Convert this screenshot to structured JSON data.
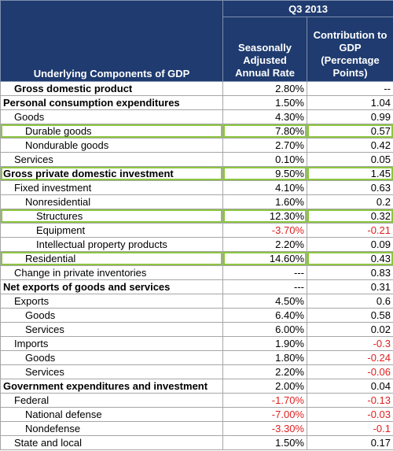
{
  "header": {
    "period": "Q3 2013",
    "component_heading": "Underlying Components of GDP",
    "rate_heading": "Seasonally Adjusted Annual Rate",
    "contribution_heading": "Contribution to GDP (Percentage Points)"
  },
  "table": {
    "rows": [
      {
        "label": "Gross domestic product",
        "rate": "2.80%",
        "contribution": "--",
        "level": 1,
        "bold": true,
        "highlight": false
      },
      {
        "label": "Personal consumption expenditures",
        "rate": "1.50%",
        "contribution": "1.04",
        "level": 0,
        "bold": true,
        "highlight": false
      },
      {
        "label": "Goods",
        "rate": "4.30%",
        "contribution": "0.99",
        "level": 1,
        "bold": false,
        "highlight": false
      },
      {
        "label": "Durable goods",
        "rate": "7.80%",
        "contribution": "0.57",
        "level": 2,
        "bold": false,
        "highlight": true
      },
      {
        "label": "Nondurable goods",
        "rate": "2.70%",
        "contribution": "0.42",
        "level": 2,
        "bold": false,
        "highlight": false
      },
      {
        "label": "Services",
        "rate": "0.10%",
        "contribution": "0.05",
        "level": 1,
        "bold": false,
        "highlight": false
      },
      {
        "label": "Gross private domestic investment",
        "rate": "9.50%",
        "contribution": "1.45",
        "level": 0,
        "bold": true,
        "highlight": true
      },
      {
        "label": "Fixed investment",
        "rate": "4.10%",
        "contribution": "0.63",
        "level": 1,
        "bold": false,
        "highlight": false
      },
      {
        "label": "Nonresidential",
        "rate": "1.60%",
        "contribution": "0.2",
        "level": 2,
        "bold": false,
        "highlight": false
      },
      {
        "label": "Structures",
        "rate": "12.30%",
        "contribution": "0.32",
        "level": 3,
        "bold": false,
        "highlight": true
      },
      {
        "label": "Equipment",
        "rate": "-3.70%",
        "contribution": "-0.21",
        "level": 3,
        "bold": false,
        "highlight": false
      },
      {
        "label": "Intellectual property products",
        "rate": "2.20%",
        "contribution": "0.09",
        "level": 3,
        "bold": false,
        "highlight": false
      },
      {
        "label": "Residential",
        "rate": "14.60%",
        "contribution": "0.43",
        "level": 2,
        "bold": false,
        "highlight": true
      },
      {
        "label": "Change in private inventories",
        "rate": "---",
        "contribution": "0.83",
        "level": 1,
        "bold": false,
        "highlight": false
      },
      {
        "label": "Net exports of goods and services",
        "rate": "---",
        "contribution": "0.31",
        "level": 0,
        "bold": true,
        "highlight": false
      },
      {
        "label": "Exports",
        "rate": "4.50%",
        "contribution": "0.6",
        "level": 1,
        "bold": false,
        "highlight": false
      },
      {
        "label": "Goods",
        "rate": "6.40%",
        "contribution": "0.58",
        "level": 2,
        "bold": false,
        "highlight": false
      },
      {
        "label": "Services",
        "rate": "6.00%",
        "contribution": "0.02",
        "level": 2,
        "bold": false,
        "highlight": false
      },
      {
        "label": "Imports",
        "rate": "1.90%",
        "contribution": "-0.3",
        "level": 1,
        "bold": false,
        "highlight": false
      },
      {
        "label": "Goods",
        "rate": "1.80%",
        "contribution": "-0.24",
        "level": 2,
        "bold": false,
        "highlight": false
      },
      {
        "label": "Services",
        "rate": "2.20%",
        "contribution": "-0.06",
        "level": 2,
        "bold": false,
        "highlight": false
      },
      {
        "label": "Government expenditures and investment",
        "rate": "2.00%",
        "contribution": "0.04",
        "level": 0,
        "bold": true,
        "highlight": false
      },
      {
        "label": "Federal",
        "rate": "-1.70%",
        "contribution": "-0.13",
        "level": 1,
        "bold": false,
        "highlight": false
      },
      {
        "label": "National defense",
        "rate": "-7.00%",
        "contribution": "-0.03",
        "level": 2,
        "bold": false,
        "highlight": false
      },
      {
        "label": "Nondefense",
        "rate": "-3.30%",
        "contribution": "-0.1",
        "level": 2,
        "bold": false,
        "highlight": false
      },
      {
        "label": "State and local",
        "rate": "1.50%",
        "contribution": "0.17",
        "level": 1,
        "bold": false,
        "highlight": false
      }
    ]
  }
}
